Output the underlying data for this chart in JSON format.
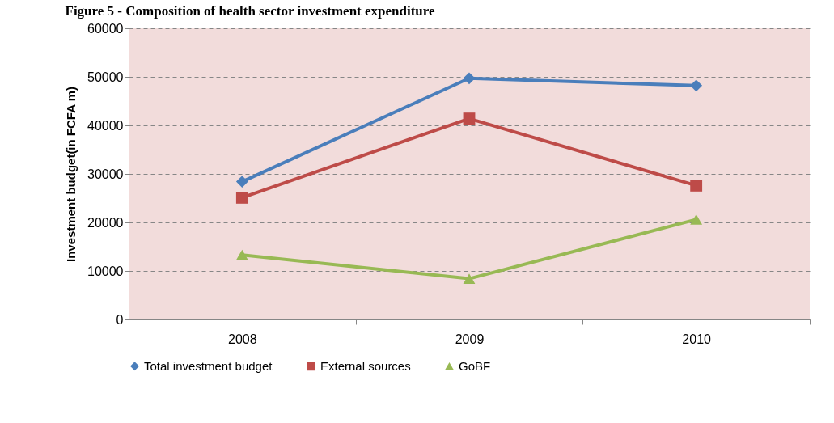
{
  "chart_data": {
    "type": "line",
    "title": "Figure 5 - Composition of health sector investment expenditure",
    "ylabel": "Investment budget(in FCFA m)",
    "categories": [
      "2008",
      "2009",
      "2010"
    ],
    "series": [
      {
        "name": "Total investment budget",
        "color": "#4a7ebb",
        "marker": "diamond",
        "values": [
          28400,
          49700,
          48200
        ]
      },
      {
        "name": "External sources",
        "color": "#be4b48",
        "marker": "square",
        "values": [
          25100,
          41400,
          27600
        ]
      },
      {
        "name": "GoBF",
        "color": "#98b954",
        "marker": "triangle",
        "values": [
          13300,
          8400,
          20600
        ]
      }
    ],
    "ylim": [
      0,
      60000
    ],
    "yticks": [
      0,
      10000,
      20000,
      30000,
      40000,
      50000,
      60000
    ],
    "grid": "y",
    "legend": "bottom",
    "line_style": "solid"
  }
}
